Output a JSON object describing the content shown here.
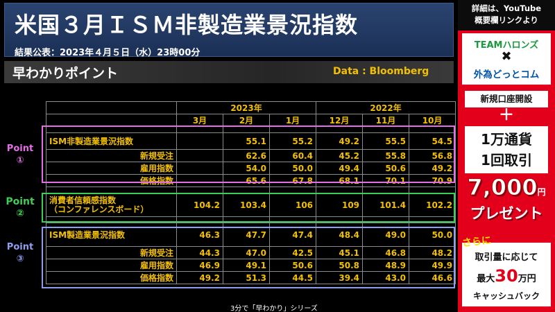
{
  "header": {
    "title": "米国３月ＩＳＭ非製造業景況指数",
    "release": "結果公表：2023年４月５日（水）23時00分"
  },
  "point_bar": {
    "title": "早わかりポイント",
    "source": "Data : Bloomberg"
  },
  "table": {
    "years": [
      "2023年",
      "2022年"
    ],
    "months": [
      "3月",
      "2月",
      "1月",
      "12月",
      "11月",
      "10月"
    ],
    "groups": [
      {
        "point_label": "Point",
        "point_num": "①",
        "rows": [
          {
            "label": "ISM非製造業景況指数",
            "values": [
              "",
              "55.1",
              "55.2",
              "49.2",
              "55.5",
              "54.5"
            ]
          },
          {
            "label": "新規受注",
            "values": [
              "",
              "62.6",
              "60.4",
              "45.2",
              "55.8",
              "56.8"
            ]
          },
          {
            "label": "雇用指数",
            "values": [
              "",
              "54.0",
              "50.0",
              "49.4",
              "50.6",
              "49.2"
            ]
          },
          {
            "label": "価格指数",
            "values": [
              "",
              "65.6",
              "67.8",
              "68.1",
              "70.1",
              "70.9"
            ]
          }
        ]
      },
      {
        "point_label": "Point",
        "point_num": "②",
        "rows": [
          {
            "label": "消費者信頼感指数",
            "label2": "（コンファレンスボード）",
            "values": [
              "104.2",
              "103.4",
              "106",
              "109",
              "101.4",
              "102.2"
            ]
          }
        ]
      },
      {
        "point_label": "Point",
        "point_num": "③",
        "rows": [
          {
            "label": "ISM製造業景況指数",
            "values": [
              "46.3",
              "47.7",
              "47.4",
              "48.4",
              "49.0",
              "50.0"
            ]
          },
          {
            "label": "新規受注",
            "values": [
              "44.3",
              "47.0",
              "42.5",
              "45.1",
              "46.8",
              "48.2"
            ]
          },
          {
            "label": "雇用指数",
            "values": [
              "46.9",
              "49.1",
              "50.6",
              "50.8",
              "48.9",
              "49.9"
            ]
          },
          {
            "label": "価格指数",
            "values": [
              "49.2",
              "51.3",
              "44.5",
              "39.4",
              "43.0",
              "46.6"
            ]
          }
        ]
      }
    ]
  },
  "footer": "3分で「早わかり」シリーズ",
  "banner": {
    "top_line1": "詳細は、YouTube",
    "top_line2": "概要欄リンクより",
    "logo_line1": "TEAMハロンズ",
    "logo_x": "✖",
    "logo_line2": "外為どっとコム",
    "account": "新規口座開設",
    "plus": "＋",
    "trade_line1": "1万通貨",
    "trade_line2": "1回取引",
    "present_amount": "7,000",
    "present_yen": "円",
    "present_word": "プレゼント",
    "sarani": "さらに",
    "cash_line1": "取引量に応じて",
    "cash_prefix": "最大",
    "cash_amount": "30",
    "cash_suffix": "万円",
    "cash_line3": "キャッシュバック"
  },
  "colors": {
    "value_text": "#f2c000",
    "point1": "#e46ee6",
    "point2": "#3dcf55",
    "point3": "#8f9ff0",
    "banner_red": "#e3001b",
    "header_blue": "#1b2f55"
  }
}
